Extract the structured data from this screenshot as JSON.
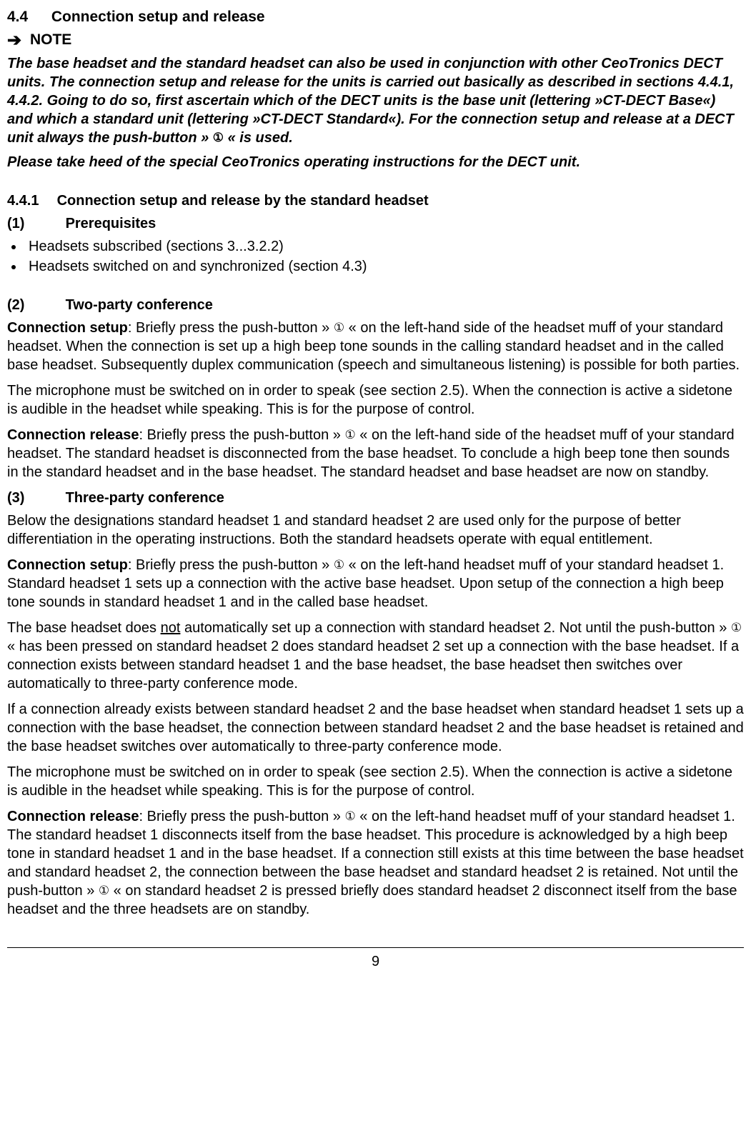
{
  "section": {
    "number": "4.4",
    "title": "Connection setup and release"
  },
  "note": {
    "label": "NOTE",
    "arrow_glyph": "➔",
    "body_pre": "The base headset and the standard headset can also be used in conjunction with other CeoTronics DECT units. The connection setup and release for the units is carried out basically as described in sections 4.4.1, 4.4.2. Going to do so, first ascertain which of the DECT units is the base unit (lettering »CT-DECT Base«) and which a standard unit (lettering »CT-DECT Standard«). For the connection setup and release at a DECT unit always the push-button » ",
    "body_post": " « is used.",
    "footer": "Please take heed of the special CeoTronics operating instructions for the DECT unit."
  },
  "circle_one_glyph": "①",
  "subsection": {
    "number": "4.4.1",
    "title": "Connection setup and release by the standard headset"
  },
  "part1": {
    "paren": "(1)",
    "title": "Prerequisites",
    "bullets": [
      "Headsets subscribed (sections 3...3.2.2)",
      "Headsets switched on and synchronized (section 4.3)"
    ]
  },
  "part2": {
    "paren": "(2)",
    "title": "Two-party conference",
    "p1_runin": "Connection setup",
    "p1_a": ": Briefly press the push-button » ",
    "p1_b": " « on the left-hand side of the headset muff of your standard headset. When the connection is set up a high beep tone sounds in the calling standard headset and in the called base headset. Subsequently duplex communication (speech and simultaneous listening) is possible for both parties.",
    "p2": "The microphone must be switched on in order to speak (see section 2.5). When the connection is active a sidetone is audible in the headset while speaking. This is for the purpose of control.",
    "p3_runin": "Connection release",
    "p3_a": ": Briefly press the push-button » ",
    "p3_b": " « on the left-hand side of the headset muff of your standard headset. The standard headset is disconnected from the base headset. To conclude a high beep tone then sounds in the standard headset and in the base headset. The standard headset and base headset are now on standby."
  },
  "part3": {
    "paren": "(3)",
    "title": "Three-party conference",
    "p1": "Below the designations standard headset 1 and standard headset 2 are used only for the purpose of better differentiation in the operating instructions. Both the standard headsets operate with equal entitlement.",
    "p2_runin": "Connection setup",
    "p2_a": ": Briefly press the push-button » ",
    "p2_b": " « on the left-hand headset muff of your standard headset 1. Standard headset 1 sets up a connection with the active base headset. Upon setup of the connection a high beep tone sounds in standard headset 1 and in the called base headset.",
    "p3_a": "The base headset does ",
    "p3_not": "not",
    "p3_b": " automatically set up a connection with standard headset 2. Not until the push-button » ",
    "p3_c": " « has been pressed on standard headset 2 does standard headset 2 set up a connection with the base headset. If a connection exists between standard headset 1 and the base headset, the base headset then switches over automatically to three-party conference mode.",
    "p4": "If a connection already exists between standard headset 2 and the base headset when standard headset 1 sets up a connection with the base headset, the connection between standard headset 2 and the base headset is retained and the base headset switches over automatically to three-party conference mode.",
    "p5": "The microphone must be switched on in order to speak (see section 2.5). When the connection is active a sidetone is audible in the headset while speaking. This is for the purpose of control.",
    "p6_runin": "Connection release",
    "p6_a": ": Briefly press the push-button » ",
    "p6_b": " « on the left-hand headset muff of your standard headset 1. The standard headset 1 disconnects itself from the base headset. This procedure is acknowledged by a high beep tone in standard headset 1 and in the base headset. If a connection still exists at this time between the base headset and standard headset 2, the connection between the base headset and standard headset 2 is retained. Not until the push-button » ",
    "p6_c": " « on standard headset 2 is pressed briefly does standard headset 2 disconnect itself from the base headset and the three headsets are on standby."
  },
  "page_number": "9"
}
